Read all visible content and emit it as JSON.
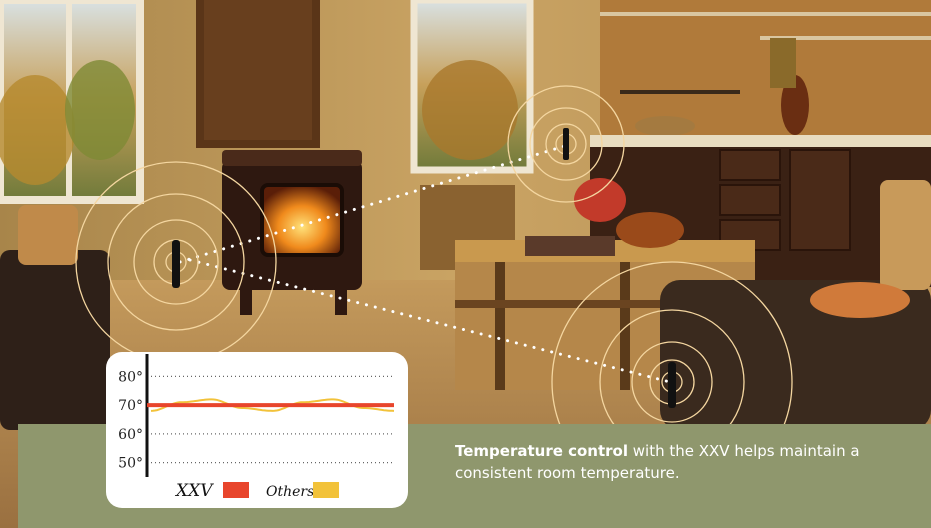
{
  "caption": {
    "bold": "Temperature control",
    "rest": " with the XXV helps maintain a consistent room temperature."
  },
  "chart_data": {
    "type": "line",
    "ylim": [
      45,
      85
    ],
    "yticks": [
      "80°",
      "70°",
      "60°",
      "50°"
    ],
    "ytick_values": [
      80,
      70,
      60,
      50
    ],
    "series": [
      {
        "name": "XXV",
        "color": "#e8452c",
        "values": [
          70,
          70,
          70,
          70,
          70,
          70,
          70,
          70,
          70
        ]
      },
      {
        "name": "Others",
        "color": "#f2c23a",
        "values": [
          68,
          71,
          72,
          69,
          68,
          71,
          72,
          69,
          68
        ]
      }
    ],
    "grid": true,
    "legend_placement": "bottom"
  },
  "colors": {
    "band": "#8f976d",
    "ring": "#f4d6a0",
    "sensor": "#111111"
  },
  "icons": {
    "sensor": "thermostat-sensor-icon",
    "waves": "signal-waves-icon"
  }
}
